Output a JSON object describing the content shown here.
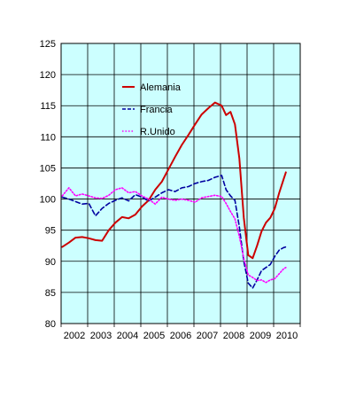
{
  "chart_data": {
    "type": "line",
    "title": "",
    "xlabel": "",
    "ylabel": "",
    "ylim": [
      80,
      125
    ],
    "yticks": [
      80,
      85,
      90,
      95,
      100,
      105,
      110,
      115,
      120,
      125
    ],
    "xlim": [
      "2002-01",
      "2010-12"
    ],
    "xtick_labels": [
      "2002",
      "2003",
      "2004",
      "2005",
      "2006",
      "2007",
      "2008",
      "2009",
      "2010"
    ],
    "grid": true,
    "legend_position": "top-center",
    "plot_background": "#ccffff",
    "series": [
      {
        "name": "Alemania",
        "color": "#cc0000",
        "style": "solid",
        "points": [
          [
            "2002-01",
            92.3
          ],
          [
            "2002-04",
            93.0
          ],
          [
            "2002-07",
            93.8
          ],
          [
            "2002-10",
            93.9
          ],
          [
            "2003-01",
            93.7
          ],
          [
            "2003-04",
            93.4
          ],
          [
            "2003-07",
            93.3
          ],
          [
            "2003-10",
            95.0
          ],
          [
            "2004-01",
            96.2
          ],
          [
            "2004-04",
            97.1
          ],
          [
            "2004-07",
            96.9
          ],
          [
            "2004-10",
            97.5
          ],
          [
            "2005-01",
            98.8
          ],
          [
            "2005-04",
            99.8
          ],
          [
            "2005-07",
            101.5
          ],
          [
            "2005-10",
            102.8
          ],
          [
            "2006-01",
            104.8
          ],
          [
            "2006-04",
            106.8
          ],
          [
            "2006-07",
            108.7
          ],
          [
            "2006-10",
            110.3
          ],
          [
            "2007-01",
            112.0
          ],
          [
            "2007-04",
            113.6
          ],
          [
            "2007-07",
            114.6
          ],
          [
            "2007-10",
            115.5
          ],
          [
            "2008-01",
            115.0
          ],
          [
            "2008-03",
            113.5
          ],
          [
            "2008-05",
            114.0
          ],
          [
            "2008-07",
            112.0
          ],
          [
            "2008-09",
            106.5
          ],
          [
            "2008-11",
            97.0
          ],
          [
            "2009-01",
            91.0
          ],
          [
            "2009-03",
            90.5
          ],
          [
            "2009-05",
            92.5
          ],
          [
            "2009-07",
            94.8
          ],
          [
            "2009-09",
            96.2
          ],
          [
            "2009-11",
            97.0
          ],
          [
            "2010-01",
            98.5
          ],
          [
            "2010-03",
            101.0
          ],
          [
            "2010-05",
            103.2
          ],
          [
            "2010-06",
            104.3
          ]
        ]
      },
      {
        "name": "Francia",
        "color": "#0000a0",
        "style": "dashed",
        "points": [
          [
            "2002-01",
            100.3
          ],
          [
            "2002-04",
            100.0
          ],
          [
            "2002-07",
            99.6
          ],
          [
            "2002-10",
            99.2
          ],
          [
            "2003-01",
            99.3
          ],
          [
            "2003-04",
            97.3
          ],
          [
            "2003-07",
            98.5
          ],
          [
            "2003-10",
            99.3
          ],
          [
            "2004-01",
            99.8
          ],
          [
            "2004-04",
            100.2
          ],
          [
            "2004-07",
            99.7
          ],
          [
            "2004-10",
            100.7
          ],
          [
            "2005-01",
            100.3
          ],
          [
            "2005-04",
            99.7
          ],
          [
            "2005-07",
            100.3
          ],
          [
            "2005-10",
            101.0
          ],
          [
            "2006-01",
            101.5
          ],
          [
            "2006-04",
            101.2
          ],
          [
            "2006-07",
            101.8
          ],
          [
            "2006-10",
            102.0
          ],
          [
            "2007-01",
            102.5
          ],
          [
            "2007-04",
            102.8
          ],
          [
            "2007-07",
            103.0
          ],
          [
            "2007-10",
            103.5
          ],
          [
            "2008-01",
            103.8
          ],
          [
            "2008-03",
            101.5
          ],
          [
            "2008-05",
            100.5
          ],
          [
            "2008-07",
            99.8
          ],
          [
            "2008-09",
            95.5
          ],
          [
            "2008-11",
            90.0
          ],
          [
            "2009-01",
            86.5
          ],
          [
            "2009-03",
            85.7
          ],
          [
            "2009-05",
            87.0
          ],
          [
            "2009-07",
            88.5
          ],
          [
            "2009-09",
            89.0
          ],
          [
            "2009-11",
            89.5
          ],
          [
            "2010-01",
            90.8
          ],
          [
            "2010-03",
            91.8
          ],
          [
            "2010-05",
            92.2
          ],
          [
            "2010-06",
            92.3
          ]
        ]
      },
      {
        "name": "R.Unido",
        "color": "#ff00ff",
        "style": "dotted",
        "points": [
          [
            "2002-01",
            100.5
          ],
          [
            "2002-04",
            101.8
          ],
          [
            "2002-07",
            100.5
          ],
          [
            "2002-10",
            100.8
          ],
          [
            "2003-01",
            100.5
          ],
          [
            "2003-04",
            100.2
          ],
          [
            "2003-07",
            100.1
          ],
          [
            "2003-10",
            100.6
          ],
          [
            "2004-01",
            101.5
          ],
          [
            "2004-04",
            101.8
          ],
          [
            "2004-07",
            101.0
          ],
          [
            "2004-10",
            101.2
          ],
          [
            "2005-01",
            100.5
          ],
          [
            "2005-04",
            100.0
          ],
          [
            "2005-07",
            99.2
          ],
          [
            "2005-10",
            100.3
          ],
          [
            "2006-01",
            100.0
          ],
          [
            "2006-04",
            99.8
          ],
          [
            "2006-07",
            100.0
          ],
          [
            "2006-10",
            99.8
          ],
          [
            "2007-01",
            99.5
          ],
          [
            "2007-04",
            100.2
          ],
          [
            "2007-07",
            100.4
          ],
          [
            "2007-10",
            100.6
          ],
          [
            "2008-01",
            100.4
          ],
          [
            "2008-03",
            99.3
          ],
          [
            "2008-05",
            98.0
          ],
          [
            "2008-07",
            96.8
          ],
          [
            "2008-09",
            94.0
          ],
          [
            "2008-11",
            90.5
          ],
          [
            "2009-01",
            87.8
          ],
          [
            "2009-03",
            87.4
          ],
          [
            "2009-05",
            86.9
          ],
          [
            "2009-07",
            87.0
          ],
          [
            "2009-09",
            86.6
          ],
          [
            "2009-11",
            87.0
          ],
          [
            "2010-01",
            87.2
          ],
          [
            "2010-03",
            88.0
          ],
          [
            "2010-05",
            88.8
          ],
          [
            "2010-06",
            89.0
          ]
        ]
      }
    ]
  }
}
